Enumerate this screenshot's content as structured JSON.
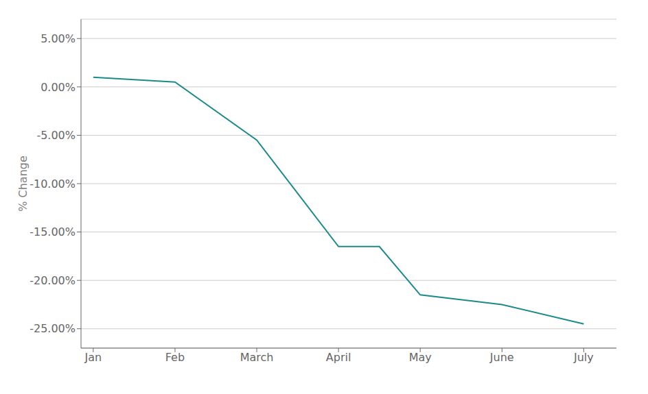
{
  "chart_data": {
    "type": "line",
    "x": [
      0,
      1,
      2,
      3,
      3.5,
      4,
      5,
      6
    ],
    "values": [
      0.01,
      0.005,
      -0.055,
      -0.165,
      -0.165,
      -0.215,
      -0.225,
      -0.245
    ],
    "color": "#1a8a8a",
    "ylabel": "% Change",
    "xlim": [
      -0.15,
      6.4
    ],
    "xticks": [
      {
        "value": 0,
        "label": "Jan"
      },
      {
        "value": 1,
        "label": "Feb"
      },
      {
        "value": 2,
        "label": "March"
      },
      {
        "value": 3,
        "label": "April"
      },
      {
        "value": 4,
        "label": "May"
      },
      {
        "value": 5,
        "label": "June"
      },
      {
        "value": 6,
        "label": "July"
      }
    ],
    "ylim": [
      -0.27,
      0.07
    ],
    "yticks": [
      {
        "value": 0.05,
        "label": "5.00%"
      },
      {
        "value": 0.0,
        "label": "0.00%"
      },
      {
        "value": -0.05,
        "label": "-5.00%"
      },
      {
        "value": -0.1,
        "label": "-10.00%"
      },
      {
        "value": -0.15,
        "label": "-15.00%"
      },
      {
        "value": -0.2,
        "label": "-20.00%"
      },
      {
        "value": -0.25,
        "label": "-25.00%"
      }
    ],
    "grid": true
  }
}
